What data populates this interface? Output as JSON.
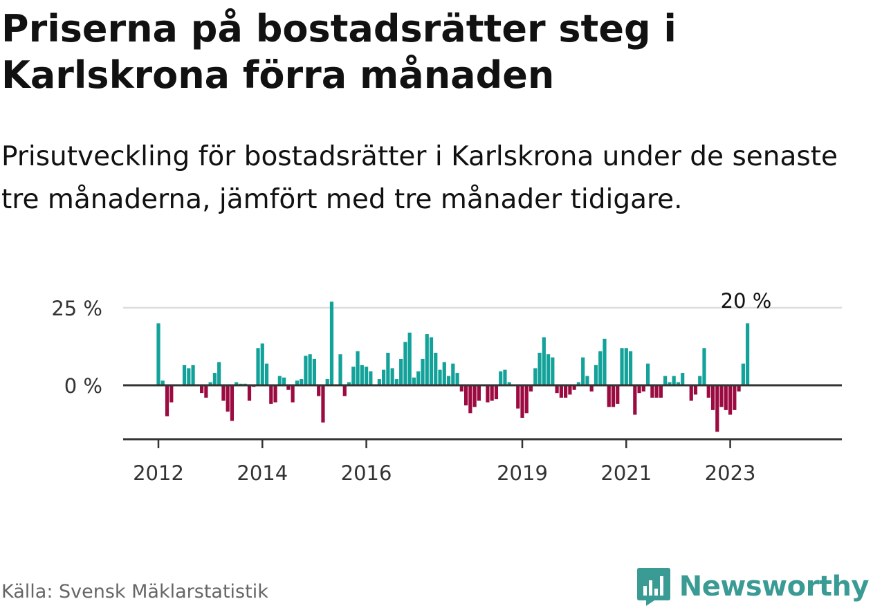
{
  "header": {
    "title": "Priserna på bostadsrätter steg i Karlskrona förra månaden",
    "subtitle": "Prisutveckling för bostadsrätter i Karlskrona under de senaste tre månaderna, jämfört med tre månader tidigare."
  },
  "footer": {
    "source": "Källa: Svensk Mäklarstatistik",
    "brand": "Newsworthy"
  },
  "colors": {
    "positive": "#13a29a",
    "negative": "#9b0a40",
    "axis": "#333333",
    "grid": "#dddddd",
    "brand": "#3a9b95"
  },
  "chart_data": {
    "type": "bar",
    "title": "Priserna på bostadsrätter steg i Karlskrona förra månaden",
    "xlabel": "",
    "ylabel": "",
    "ylim": [
      -17,
      25
    ],
    "y_ticks": [
      {
        "value": 25,
        "label": "25 %"
      },
      {
        "value": 0,
        "label": "0 %"
      }
    ],
    "x_ticks": [
      {
        "label": "2012",
        "index": 0
      },
      {
        "label": "2014",
        "index": 24
      },
      {
        "label": "2016",
        "index": 48
      },
      {
        "label": "2019",
        "index": 84
      },
      {
        "label": "2021",
        "index": 108
      },
      {
        "label": "2023",
        "index": 132
      }
    ],
    "grid": "horizontal",
    "legend": "none",
    "start_month": "2011-12",
    "annotation": {
      "label": "20 %",
      "value": 20,
      "index": 135
    },
    "values": [
      20,
      1.5,
      -10,
      -5.5,
      0,
      0,
      6.5,
      5.5,
      6.5,
      0,
      -2.5,
      -4,
      1,
      4,
      7.5,
      -5,
      -8.5,
      -11.5,
      1,
      0.5,
      0.5,
      -5,
      -0.5,
      12,
      13.5,
      7,
      -6,
      -5.5,
      3,
      2.5,
      -1.5,
      -5.5,
      1.5,
      2,
      9.5,
      10,
      8.5,
      -3.5,
      -12,
      2,
      27,
      0,
      10,
      -3.5,
      1,
      6,
      11,
      6.5,
      6,
      4.5,
      0,
      2,
      5,
      10.5,
      5.5,
      2,
      8.5,
      14,
      17,
      2.5,
      4.5,
      8.5,
      16.5,
      15.5,
      10.5,
      5,
      7.5,
      3,
      7,
      4,
      -2,
      -6.5,
      -9,
      -7,
      -5,
      0,
      -5.5,
      -5,
      -4.5,
      4.5,
      5,
      1,
      0,
      -7.5,
      -10.5,
      -9,
      -2,
      5.5,
      10.5,
      15.5,
      10,
      9,
      -2.5,
      -4,
      -4,
      -3,
      -1.5,
      1,
      9,
      3,
      -2,
      6.5,
      11,
      15,
      -7,
      -7,
      -6,
      12,
      12,
      11,
      -9.5,
      -2.5,
      -2,
      7,
      -4,
      -4,
      -4,
      3,
      1,
      3,
      1,
      4,
      0,
      -5,
      -3,
      3,
      12,
      -4,
      -8,
      -15,
      -7,
      -8,
      -9.5,
      -8,
      -2,
      7,
      20
    ]
  }
}
